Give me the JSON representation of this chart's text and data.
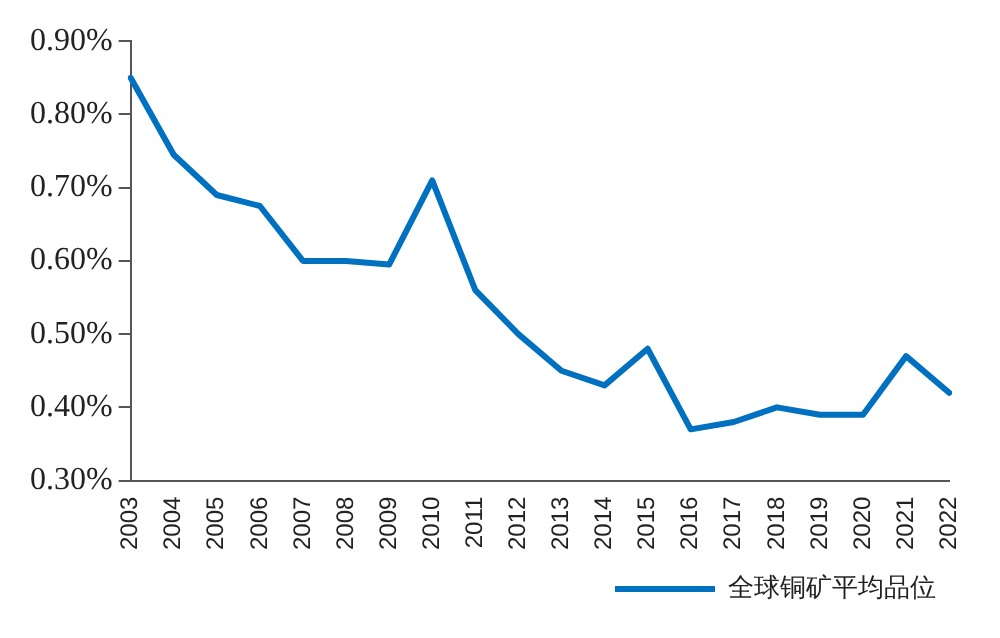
{
  "chart_data": {
    "type": "line",
    "categories": [
      "2003",
      "2004",
      "2005",
      "2006",
      "2007",
      "2008",
      "2009",
      "2010",
      "2011",
      "2012",
      "2013",
      "2014",
      "2015",
      "2016",
      "2017",
      "2018",
      "2019",
      "2020",
      "2021",
      "2022"
    ],
    "series": [
      {
        "name": "全球铜矿平均品位",
        "color": "#0070c0",
        "values": [
          0.85,
          0.745,
          0.69,
          0.675,
          0.6,
          0.6,
          0.595,
          0.71,
          0.56,
          0.5,
          0.45,
          0.43,
          0.48,
          0.37,
          0.38,
          0.4,
          0.39,
          0.39,
          0.47,
          0.42
        ]
      }
    ],
    "ylim": [
      0.3,
      0.9
    ],
    "yticks": [
      {
        "value": 0.3,
        "label": "0.30%"
      },
      {
        "value": 0.4,
        "label": "0.40%"
      },
      {
        "value": 0.5,
        "label": "0.50%"
      },
      {
        "value": 0.6,
        "label": "0.60%"
      },
      {
        "value": 0.7,
        "label": "0.70%"
      },
      {
        "value": 0.8,
        "label": "0.80%"
      },
      {
        "value": 0.9,
        "label": "0.90%"
      }
    ],
    "grid": false,
    "legend": "bottom",
    "marker": "none",
    "line_style": "solid"
  }
}
